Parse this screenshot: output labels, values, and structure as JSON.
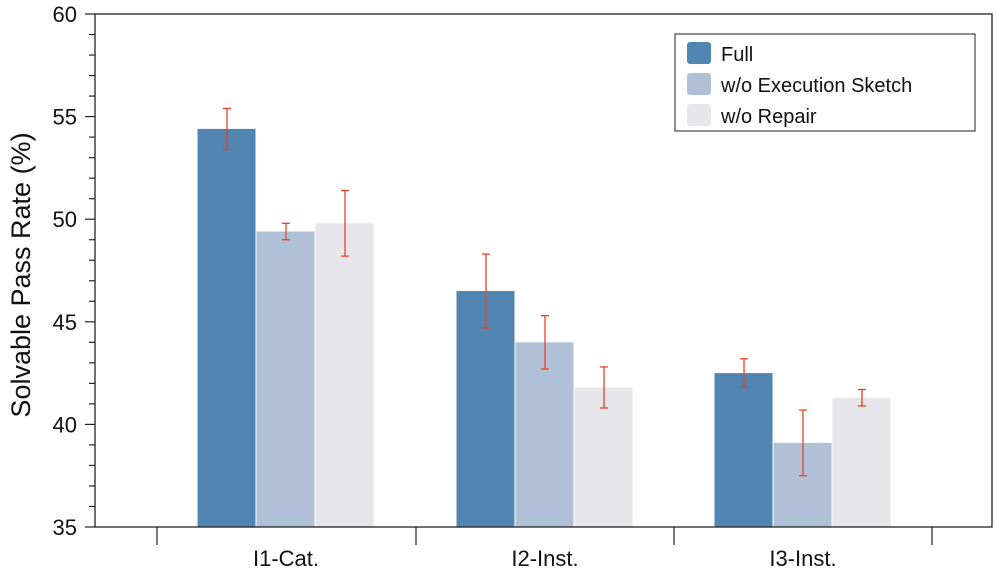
{
  "chart_data": {
    "type": "bar",
    "categories": [
      "I1-Cat.",
      "I2-Inst.",
      "I3-Inst."
    ],
    "series": [
      {
        "name": "Full",
        "color": "#5185b2",
        "values": [
          54.4,
          46.5,
          42.5
        ],
        "err_low": [
          53.4,
          44.7,
          41.8
        ],
        "err_high": [
          55.4,
          48.3,
          43.2
        ]
      },
      {
        "name": "w/o Execution Sketch",
        "color": "#b0c0d7",
        "values": [
          49.4,
          44.0,
          39.1
        ],
        "err_low": [
          49.0,
          42.7,
          37.5
        ],
        "err_high": [
          49.8,
          45.3,
          40.7
        ]
      },
      {
        "name": "w/o Repair",
        "color": "#e6e6eb",
        "values": [
          49.8,
          41.8,
          41.3
        ],
        "err_low": [
          48.2,
          40.8,
          40.9
        ],
        "err_high": [
          51.4,
          42.8,
          41.7
        ]
      }
    ],
    "error_bar_color": "#e8432a",
    "ylabel": "Solvable Pass Rate (%)",
    "xlabel": "",
    "ylim": [
      35,
      60
    ],
    "yticks": [
      35,
      40,
      45,
      50,
      55,
      60
    ],
    "legend_position": "top-right",
    "grid": false
  }
}
